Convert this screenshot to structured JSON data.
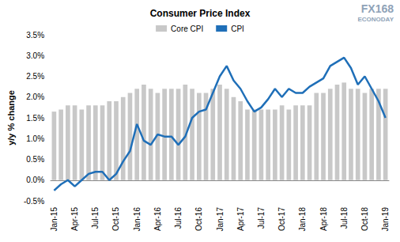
{
  "chart_data": {
    "type": "bar",
    "title": "Consumer Price Index",
    "y_label": "y/y % change",
    "annotations": [
      "FX168",
      "ECONODAY"
    ],
    "categories": [
      "Jan-15",
      null,
      null,
      "Apr-15",
      null,
      null,
      "Jul-15",
      null,
      null,
      "Oct-15",
      null,
      null,
      "Jan-16",
      null,
      null,
      "Apr-16",
      null,
      null,
      "Jul-16",
      null,
      null,
      "Oct-16",
      null,
      null,
      "Jan-17",
      null,
      null,
      "Apr-17",
      null,
      null,
      "Jul-17",
      null,
      null,
      "Oct-17",
      null,
      null,
      "Jan-18",
      null,
      null,
      "Apr-18",
      null,
      null,
      "Jul-18",
      null,
      null,
      "Oct-18",
      null,
      null,
      "Jan-19"
    ],
    "series": [
      {
        "name": "Core CPI",
        "type": "bar",
        "color": "#c8c8c8",
        "values": [
          1.65,
          1.7,
          1.8,
          1.8,
          1.7,
          1.8,
          1.8,
          1.8,
          1.9,
          1.9,
          2.0,
          2.1,
          2.2,
          2.3,
          2.2,
          2.1,
          2.2,
          2.2,
          2.2,
          2.3,
          2.2,
          2.1,
          2.1,
          2.2,
          2.3,
          2.2,
          2.0,
          1.9,
          1.7,
          1.7,
          1.7,
          1.7,
          1.7,
          1.8,
          1.7,
          1.8,
          1.8,
          1.8,
          2.1,
          2.1,
          2.2,
          2.3,
          2.35,
          2.2,
          2.2,
          2.1,
          2.2,
          2.2,
          2.2
        ]
      },
      {
        "name": "CPI",
        "type": "line",
        "color": "#1f6fb8",
        "marker": "none",
        "values": [
          -0.25,
          -0.1,
          0.0,
          -0.15,
          0.0,
          0.15,
          0.2,
          0.2,
          0.0,
          0.15,
          0.45,
          0.7,
          1.35,
          0.95,
          0.85,
          1.1,
          1.05,
          1.05,
          0.85,
          1.05,
          1.5,
          1.65,
          1.7,
          2.1,
          2.5,
          2.75,
          2.4,
          2.2,
          1.9,
          1.65,
          1.75,
          1.95,
          2.2,
          2.0,
          2.2,
          2.1,
          2.1,
          2.25,
          2.35,
          2.45,
          2.75,
          2.85,
          2.95,
          2.7,
          2.3,
          2.5,
          2.2,
          1.9,
          1.5
        ]
      }
    ],
    "ylim": [
      -0.5,
      3.5
    ],
    "yticks": [
      {
        "value": -0.5,
        "label": "-0.5%"
      },
      {
        "value": 0,
        "label": "0.0%"
      },
      {
        "value": 0.5,
        "label": "0.5%"
      },
      {
        "value": 1,
        "label": "1.0%"
      },
      {
        "value": 1.5,
        "label": "1.5%"
      },
      {
        "value": 2,
        "label": "2.0%"
      },
      {
        "value": 2.5,
        "label": "2.5%"
      },
      {
        "value": 3,
        "label": "3.0%"
      },
      {
        "value": 3.5,
        "label": "3.5%"
      }
    ],
    "grid": false,
    "legend": "top"
  }
}
